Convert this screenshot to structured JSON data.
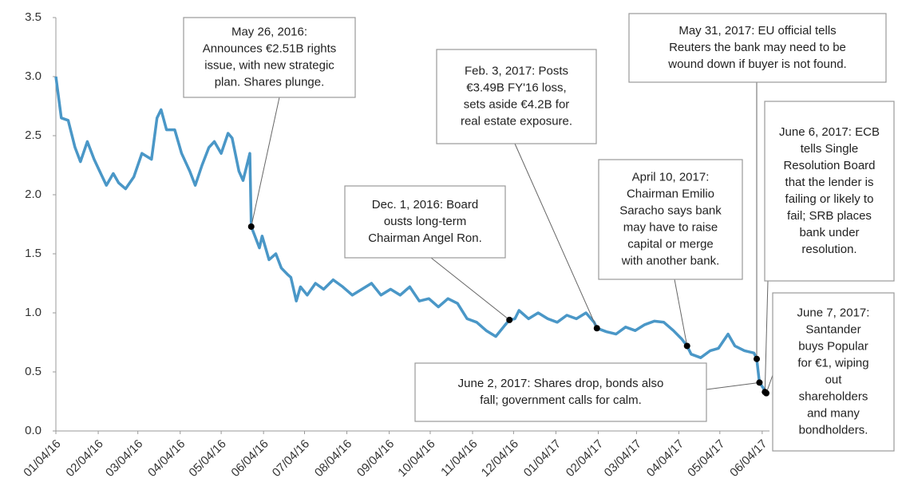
{
  "chart_data": {
    "type": "line",
    "xlim": [
      "2016-01-04",
      "2017-06-07"
    ],
    "ylim": [
      0,
      3.5
    ],
    "yticks": [
      {
        "value": 0,
        "label": "0.0"
      },
      {
        "value": 0.5,
        "label": "0.5"
      },
      {
        "value": 1,
        "label": "1.0"
      },
      {
        "value": 1.5,
        "label": "1.5"
      },
      {
        "value": 2,
        "label": "2.0"
      },
      {
        "value": 2.5,
        "label": "2.5"
      },
      {
        "value": 3,
        "label": "3.0"
      },
      {
        "value": 3.5,
        "label": "3.5"
      }
    ],
    "xticks": [
      {
        "value": "2016-01-04",
        "label": "01/04/16"
      },
      {
        "value": "2016-02-04",
        "label": "02/04/16"
      },
      {
        "value": "2016-03-04",
        "label": "03/04/16"
      },
      {
        "value": "2016-04-04",
        "label": "04/04/16"
      },
      {
        "value": "2016-05-04",
        "label": "05/04/16"
      },
      {
        "value": "2016-06-04",
        "label": "06/04/16"
      },
      {
        "value": "2016-07-04",
        "label": "07/04/16"
      },
      {
        "value": "2016-08-04",
        "label": "08/04/16"
      },
      {
        "value": "2016-09-04",
        "label": "09/04/16"
      },
      {
        "value": "2016-10-04",
        "label": "10/04/16"
      },
      {
        "value": "2016-11-04",
        "label": "11/04/16"
      },
      {
        "value": "2016-12-04",
        "label": "12/04/16"
      },
      {
        "value": "2017-01-04",
        "label": "01/04/17"
      },
      {
        "value": "2017-02-04",
        "label": "02/04/17"
      },
      {
        "value": "2017-03-04",
        "label": "03/04/17"
      },
      {
        "value": "2017-04-04",
        "label": "04/04/17"
      },
      {
        "value": "2017-05-04",
        "label": "05/04/17"
      },
      {
        "value": "2017-06-04",
        "label": "06/04/17"
      }
    ],
    "series": [
      {
        "color": "#4a97c7",
        "x": [
          "2016-01-04",
          "2016-01-08",
          "2016-01-13",
          "2016-01-18",
          "2016-01-22",
          "2016-01-27",
          "2016-02-01",
          "2016-02-05",
          "2016-02-10",
          "2016-02-15",
          "2016-02-19",
          "2016-02-24",
          "2016-03-01",
          "2016-03-07",
          "2016-03-14",
          "2016-03-18",
          "2016-03-21",
          "2016-03-25",
          "2016-03-31",
          "2016-04-05",
          "2016-04-11",
          "2016-04-15",
          "2016-04-20",
          "2016-04-25",
          "2016-04-29",
          "2016-05-04",
          "2016-05-09",
          "2016-05-12",
          "2016-05-17",
          "2016-05-20",
          "2016-05-25",
          "2016-05-26",
          "2016-06-01",
          "2016-06-03",
          "2016-06-08",
          "2016-06-13",
          "2016-06-17",
          "2016-06-22",
          "2016-06-24",
          "2016-06-28",
          "2016-07-01",
          "2016-07-06",
          "2016-07-12",
          "2016-07-18",
          "2016-07-25",
          "2016-08-01",
          "2016-08-08",
          "2016-08-15",
          "2016-08-22",
          "2016-08-29",
          "2016-09-05",
          "2016-09-12",
          "2016-09-19",
          "2016-09-26",
          "2016-10-03",
          "2016-10-10",
          "2016-10-17",
          "2016-10-24",
          "2016-10-31",
          "2016-11-07",
          "2016-11-14",
          "2016-11-21",
          "2016-11-28",
          "2016-12-01",
          "2016-12-05",
          "2016-12-08",
          "2016-12-15",
          "2016-12-22",
          "2016-12-29",
          "2017-01-05",
          "2017-01-12",
          "2017-01-19",
          "2017-01-26",
          "2017-02-01",
          "2017-02-03",
          "2017-02-10",
          "2017-02-17",
          "2017-02-24",
          "2017-03-03",
          "2017-03-10",
          "2017-03-17",
          "2017-03-24",
          "2017-03-31",
          "2017-04-06",
          "2017-04-10",
          "2017-04-13",
          "2017-04-20",
          "2017-04-27",
          "2017-05-03",
          "2017-05-10",
          "2017-05-15",
          "2017-05-22",
          "2017-05-29",
          "2017-05-31",
          "2017-06-02",
          "2017-06-05",
          "2017-06-06",
          "2017-06-07"
        ],
        "values": [
          3.0,
          2.65,
          2.63,
          2.4,
          2.28,
          2.45,
          2.3,
          2.2,
          2.08,
          2.18,
          2.1,
          2.05,
          2.15,
          2.35,
          2.3,
          2.65,
          2.72,
          2.55,
          2.55,
          2.35,
          2.2,
          2.08,
          2.25,
          2.4,
          2.45,
          2.35,
          2.52,
          2.48,
          2.2,
          2.12,
          2.35,
          1.73,
          1.55,
          1.65,
          1.45,
          1.5,
          1.38,
          1.32,
          1.3,
          1.1,
          1.22,
          1.15,
          1.25,
          1.2,
          1.28,
          1.22,
          1.15,
          1.2,
          1.25,
          1.15,
          1.2,
          1.15,
          1.22,
          1.1,
          1.12,
          1.05,
          1.12,
          1.08,
          0.95,
          0.92,
          0.85,
          0.8,
          0.9,
          0.94,
          0.95,
          1.02,
          0.95,
          1.0,
          0.95,
          0.92,
          0.98,
          0.95,
          1.0,
          0.92,
          0.87,
          0.84,
          0.82,
          0.88,
          0.85,
          0.9,
          0.93,
          0.92,
          0.85,
          0.78,
          0.72,
          0.65,
          0.62,
          0.68,
          0.7,
          0.82,
          0.72,
          0.68,
          0.66,
          0.61,
          0.41,
          0.36,
          0.33,
          0.32
        ]
      }
    ],
    "annotations": [
      {
        "x": "2016-05-26",
        "lines": [
          "May 26, 2016:",
          "Announces €2.51B rights",
          "issue, with new strategic",
          "plan. Shares plunge."
        ]
      },
      {
        "x": "2017-02-03",
        "lines": [
          "Feb. 3, 2017: Posts",
          "€3.49B FY'16 loss,",
          "sets aside €4.2B for",
          "real estate exposure."
        ]
      },
      {
        "x": "2016-12-01",
        "lines": [
          "Dec. 1, 2016: Board",
          "ousts long-term",
          "Chairman Angel Ron."
        ]
      },
      {
        "x": "2017-04-10",
        "lines": [
          "April 10, 2017:",
          "Chairman Emilio",
          "Saracho says bank",
          "may have to raise",
          "capital or merge",
          "with another bank."
        ]
      },
      {
        "x": "2017-05-31",
        "lines": [
          "May 31, 2017: EU official tells",
          "Reuters the bank may need to be",
          "wound down if buyer is not found."
        ]
      },
      {
        "x": "2017-06-06",
        "lines": [
          "June 6, 2017: ECB",
          "tells Single",
          "Resolution Board",
          "that the lender is",
          "failing or likely to",
          "fail; SRB places",
          "bank under",
          "resolution."
        ]
      },
      {
        "x": "2017-06-02",
        "lines": [
          "June 2, 2017: Shares drop, bonds also",
          "fall; government calls for calm."
        ]
      },
      {
        "x": "2017-06-07",
        "lines": [
          "June 7, 2017:",
          "Santander",
          "buys Popular",
          "for €1, wiping",
          "out",
          "shareholders",
          "and many",
          "bondholders."
        ]
      }
    ]
  }
}
